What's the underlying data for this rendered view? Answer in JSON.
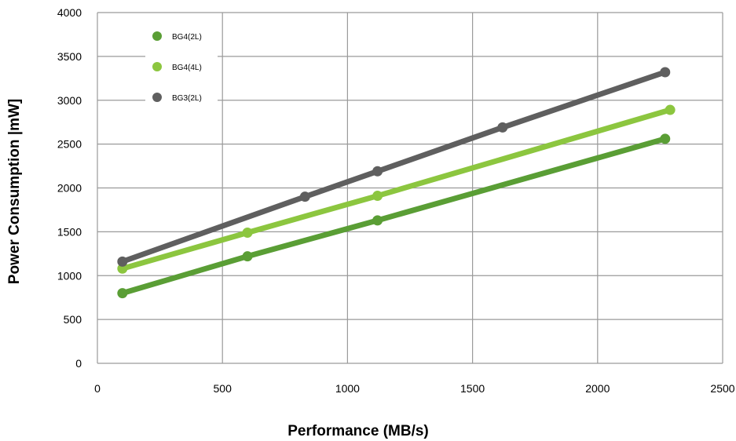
{
  "chart_data": {
    "type": "line",
    "title": "",
    "xlabel": "Performance (MB/s)",
    "ylabel": "Power Consumption |mW]",
    "xlim": [
      0,
      2500
    ],
    "ylim": [
      0,
      4000
    ],
    "xticks": [
      0,
      500,
      1000,
      1500,
      2000,
      2500
    ],
    "yticks": [
      0,
      500,
      1000,
      1500,
      2000,
      2500,
      3000,
      3500,
      4000
    ],
    "x_tick_labels": [
      "0",
      "500",
      "1000",
      "1500",
      "2000",
      "2500"
    ],
    "y_tick_labels": [
      "0",
      "500",
      "1000",
      "1500",
      "2000",
      "2500",
      "3000",
      "3500",
      "4000"
    ],
    "grid": true,
    "legend_position": "top-left",
    "series": [
      {
        "name": "BG4(2L)",
        "color": "#5a9e35",
        "points": [
          [
            100,
            800
          ],
          [
            600,
            1220
          ],
          [
            1120,
            1630
          ],
          [
            2270,
            2560
          ]
        ]
      },
      {
        "name": "BG4(4L)",
        "color": "#8cc63f",
        "points": [
          [
            100,
            1080
          ],
          [
            600,
            1490
          ],
          [
            1120,
            1910
          ],
          [
            2290,
            2890
          ]
        ]
      },
      {
        "name": "BG3(2L)",
        "color": "#5f5f5f",
        "points": [
          [
            100,
            1160
          ],
          [
            830,
            1900
          ],
          [
            1120,
            2190
          ],
          [
            1620,
            2690
          ],
          [
            2270,
            3320
          ]
        ]
      }
    ]
  }
}
